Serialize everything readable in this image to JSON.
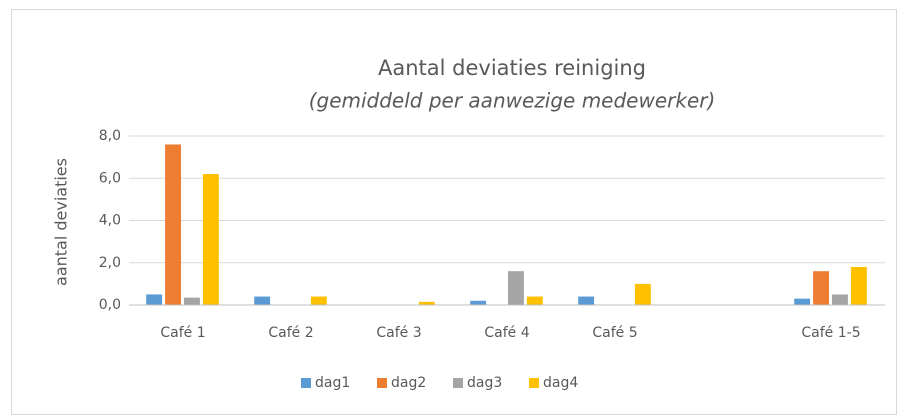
{
  "chart_data": {
    "type": "bar",
    "title": "Aantal deviaties reiniging",
    "subtitle": "(gemiddeld per aanwezige medewerker)",
    "y_label": "aantal deviaties",
    "categories": [
      "Café 1",
      "Café 2",
      "Café 3",
      "Café 4",
      "Café 5",
      null,
      "Café 1-5"
    ],
    "series": [
      {
        "name": "dag1",
        "color": "#5b9bd5",
        "values": [
          0.5,
          0.4,
          0,
          0.2,
          0.4,
          null,
          0.3
        ]
      },
      {
        "name": "dag2",
        "color": "#ed7d31",
        "values": [
          7.6,
          0,
          0,
          0,
          0,
          null,
          1.6
        ]
      },
      {
        "name": "dag3",
        "color": "#a5a5a5",
        "values": [
          0.35,
          0,
          0,
          1.6,
          0,
          null,
          0.5
        ]
      },
      {
        "name": "dag4",
        "color": "#ffc000",
        "values": [
          6.2,
          0.4,
          0.15,
          0.4,
          1.0,
          null,
          1.8
        ]
      }
    ],
    "ylim": [
      0,
      8
    ],
    "yticks": [
      {
        "value": 0,
        "label": "0,0"
      },
      {
        "value": 2,
        "label": "2,0"
      },
      {
        "value": 4,
        "label": "4,0"
      },
      {
        "value": 6,
        "label": "6,0"
      },
      {
        "value": 8,
        "label": "8,0"
      }
    ],
    "grid": true,
    "legend": "bottom"
  }
}
